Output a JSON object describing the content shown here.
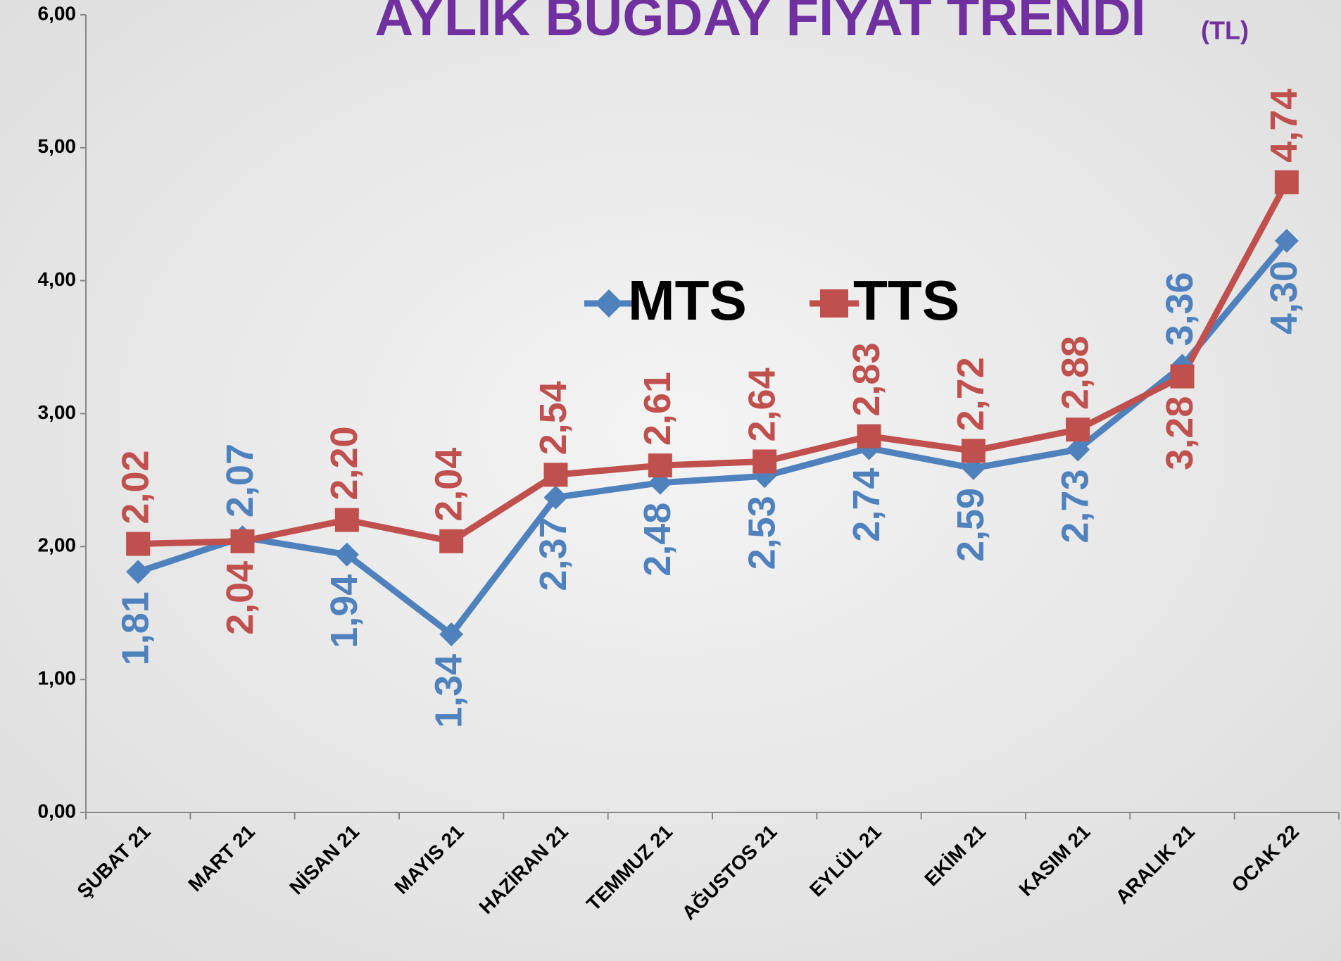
{
  "chart_data": {
    "type": "line",
    "title": "AYLIK BUĞDAY FİYAT TRENDİ",
    "subtitle": "(TL)",
    "categories": [
      "ŞUBAT 21",
      "MART 21",
      "NİSAN 21",
      "MAYIS 21",
      "HAZİRAN 21",
      "TEMMUZ 21",
      "AĞUSTOS 21",
      "EYLÜL 21",
      "EKİM 21",
      "KASIM 21",
      "ARALIK 21",
      "OCAK 22"
    ],
    "series": [
      {
        "name": "MTS",
        "color": "#4f81bd",
        "marker": "diamond",
        "values": [
          1.81,
          2.07,
          1.94,
          1.34,
          2.37,
          2.48,
          2.53,
          2.74,
          2.59,
          2.73,
          3.36,
          4.3
        ],
        "value_labels": [
          "1,81",
          "2,07",
          "1,94",
          "1,34",
          "2,37",
          "2,48",
          "2,53",
          "2,74",
          "2,59",
          "2,73",
          "3,36",
          "4,30"
        ]
      },
      {
        "name": "TTS",
        "color": "#c0504d",
        "marker": "square",
        "values": [
          2.02,
          2.04,
          2.2,
          2.04,
          2.54,
          2.61,
          2.64,
          2.83,
          2.72,
          2.88,
          3.28,
          4.74
        ],
        "value_labels": [
          "2,02",
          "2,04",
          "2,20",
          "2,04",
          "2,54",
          "2,61",
          "2,64",
          "2,83",
          "2,72",
          "2,88",
          "3,28",
          "4,74"
        ]
      }
    ],
    "ylim": [
      0,
      6
    ],
    "yticks": [
      {
        "value": 0,
        "label": "0,00"
      },
      {
        "value": 1,
        "label": "1,00"
      },
      {
        "value": 2,
        "label": "2,00"
      },
      {
        "value": 3,
        "label": "3,00"
      },
      {
        "value": 4,
        "label": "4,00"
      },
      {
        "value": 5,
        "label": "5,00"
      },
      {
        "value": 6,
        "label": "6,00"
      }
    ],
    "grid": false,
    "legend": "top"
  }
}
